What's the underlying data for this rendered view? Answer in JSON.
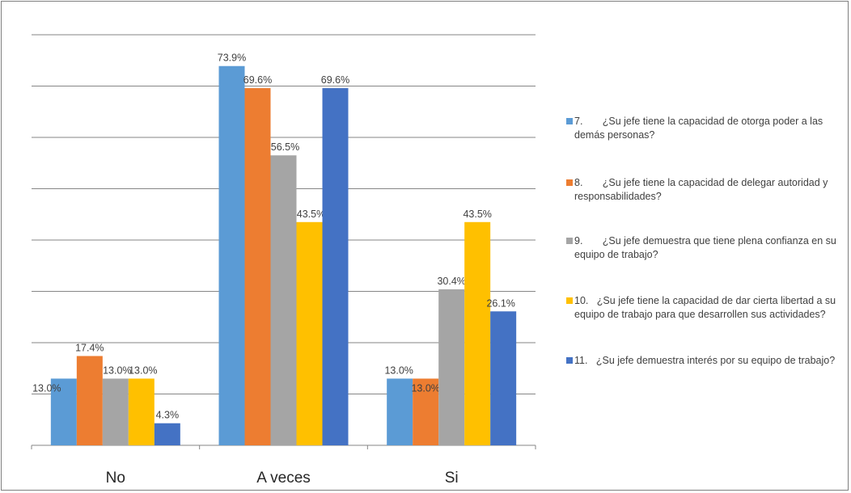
{
  "chart_data": {
    "type": "bar",
    "categories": [
      "No",
      "A veces",
      "Si"
    ],
    "ylim": [
      0,
      80
    ],
    "grid": true,
    "legend_position": "right",
    "series": [
      {
        "name": "7.       ¿Su jefe tiene la capacidad de otorga poder a las demás personas?",
        "color": "#5b9bd5",
        "values": [
          13.0,
          73.9,
          13.0
        ],
        "labels": [
          "13.0%",
          "73.9%",
          "13.0%"
        ]
      },
      {
        "name": "8.       ¿Su jefe tiene la capacidad de delegar autoridad y responsabilidades?",
        "color": "#ed7d31",
        "values": [
          17.4,
          69.6,
          13.0
        ],
        "labels": [
          "17.4%",
          "69.6%",
          "13.0%"
        ]
      },
      {
        "name": "9.       ¿Su jefe demuestra que tiene plena confianza en su equipo de trabajo?",
        "color": "#a5a5a5",
        "values": [
          13.0,
          56.5,
          30.4
        ],
        "labels": [
          "13.0%",
          "56.5%",
          "30.4%"
        ]
      },
      {
        "name": "10.   ¿Su jefe tiene la capacidad de dar cierta libertad a su equipo de trabajo para que desarrollen sus actividades?",
        "color": "#ffc000",
        "values": [
          13.0,
          43.5,
          43.5
        ],
        "labels": [
          "13.0%",
          "43.5%",
          "43.5%"
        ]
      },
      {
        "name": "11.   ¿Su jefe demuestra interés por su equipo de trabajo?",
        "color": "#4472c4",
        "values": [
          4.3,
          69.6,
          26.1
        ],
        "labels": [
          "4.3%",
          "69.6%",
          "26.1%"
        ]
      }
    ]
  }
}
